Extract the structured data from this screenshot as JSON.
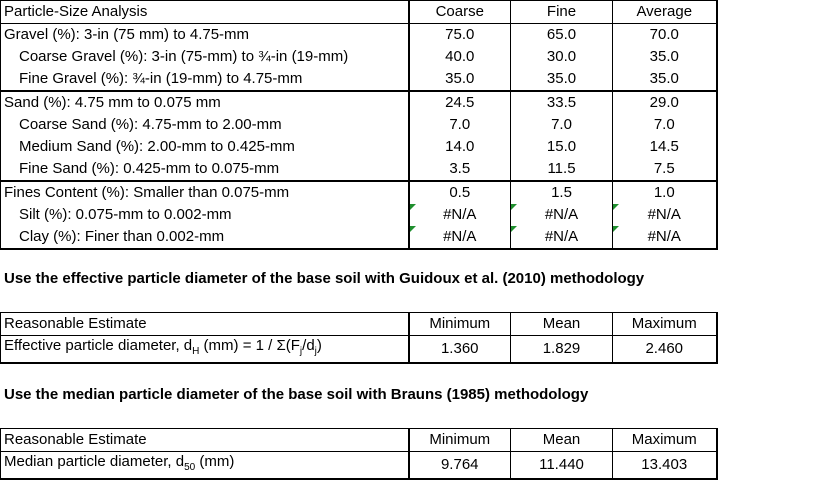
{
  "psa": {
    "title": "Particle-Size Analysis",
    "cols": [
      "Coarse",
      "Fine",
      "Average"
    ],
    "rows": [
      {
        "label": "Gravel (%): 3-in (75 mm) to 4.75-mm",
        "v": [
          "75.0",
          "65.0",
          "70.0"
        ]
      },
      {
        "label": "Coarse Gravel (%): 3-in (75-mm) to ¾-in (19-mm)",
        "v": [
          "40.0",
          "30.0",
          "35.0"
        ]
      },
      {
        "label": "Fine Gravel (%): ¾-in (19-mm) to 4.75-mm",
        "v": [
          "35.0",
          "35.0",
          "35.0"
        ]
      },
      {
        "label": "Sand (%): 4.75 mm to 0.075 mm",
        "v": [
          "24.5",
          "33.5",
          "29.0"
        ]
      },
      {
        "label": "Coarse Sand (%): 4.75-mm to 2.00-mm",
        "v": [
          "7.0",
          "7.0",
          "7.0"
        ]
      },
      {
        "label": "Medium Sand (%): 2.00-mm to 0.425-mm",
        "v": [
          "14.0",
          "15.0",
          "14.5"
        ]
      },
      {
        "label": "Fine Sand (%): 0.425-mm to 0.075-mm",
        "v": [
          "3.5",
          "11.5",
          "7.5"
        ]
      },
      {
        "label": "Fines Content (%): Smaller than 0.075-mm",
        "v": [
          "0.5",
          "1.5",
          "1.0"
        ]
      },
      {
        "label": "Silt (%): 0.075-mm to 0.002-mm",
        "v": [
          "#N/A",
          "#N/A",
          "#N/A"
        ]
      },
      {
        "label": "Clay (%): Finer than 0.002-mm",
        "v": [
          "#N/A",
          "#N/A",
          "#N/A"
        ]
      }
    ]
  },
  "section1": {
    "heading": "Use the effective particle diameter of the base soil with Guidoux et al. (2010) methodology",
    "header_label": "Reasonable Estimate",
    "cols": [
      "Minimum",
      "Mean",
      "Maximum"
    ],
    "row_label_pre": "Effective particle diameter, d",
    "row_label_sub": "H",
    "row_label_mid": " (mm) = 1 / Σ(F",
    "row_label_sub2": "j",
    "row_label_mid2": "/d",
    "row_label_sub3": "j",
    "row_label_post": ")",
    "values": [
      "1.360",
      "1.829",
      "2.460"
    ]
  },
  "section2": {
    "heading": "Use the median particle diameter of the base soil with Brauns (1985) methodology",
    "header_label": "Reasonable Estimate",
    "cols": [
      "Minimum",
      "Mean",
      "Maximum"
    ],
    "row_label_pre": "Median particle diameter, d",
    "row_label_sub": "50",
    "row_label_post": " (mm)",
    "values": [
      "9.764",
      "11.440",
      "13.403"
    ]
  },
  "colors": {
    "error_indicator": "#1f8f2e"
  }
}
